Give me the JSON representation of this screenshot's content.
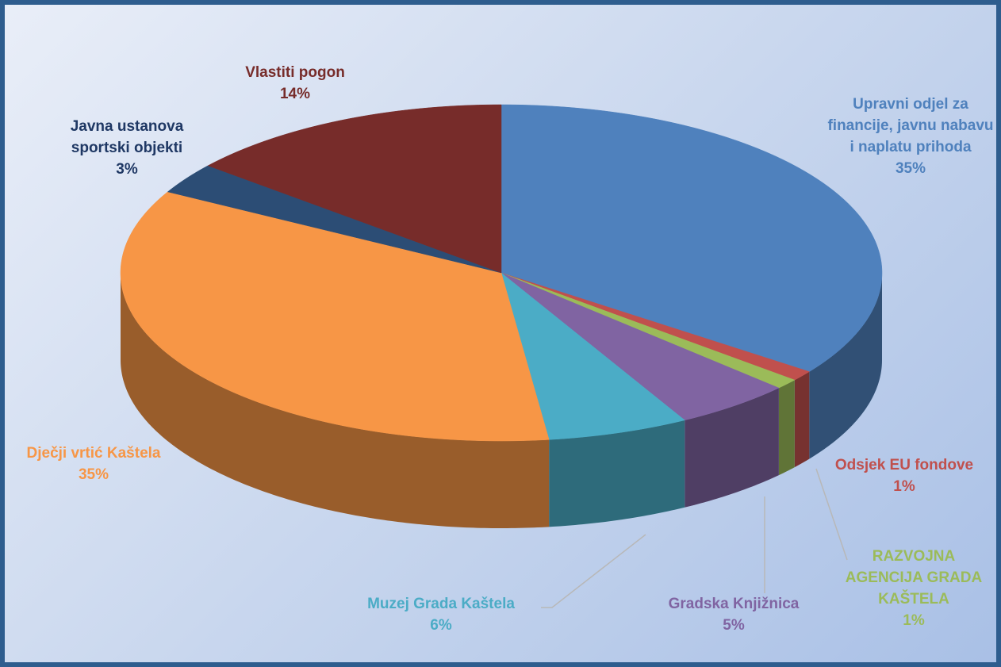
{
  "chart_data": {
    "type": "pie",
    "categories": [
      "Upravni odjel za financije, javnu nabavu i naplatu prihoda",
      "Odsjek  EU fondove",
      "RAZVOJNA AGENCIJA GRADA KAŠTELA",
      "Gradska Knjižnica",
      "Muzej Grada Kaštela",
      "Dječji vrtić Kaštela",
      "Javna ustanova sportski objekti",
      "Vlastiti pogon"
    ],
    "values": [
      35,
      1,
      1,
      5,
      6,
      35,
      3,
      14
    ],
    "value_labels": [
      "35%",
      "1%",
      "1%",
      "5%",
      "6%",
      "35%",
      "3%",
      "14%"
    ],
    "colors": [
      "#4f81bd",
      "#c0504d",
      "#9bbb59",
      "#8064a2",
      "#4bacc6",
      "#f79646",
      "#2c4d75",
      "#772c2a"
    ]
  }
}
